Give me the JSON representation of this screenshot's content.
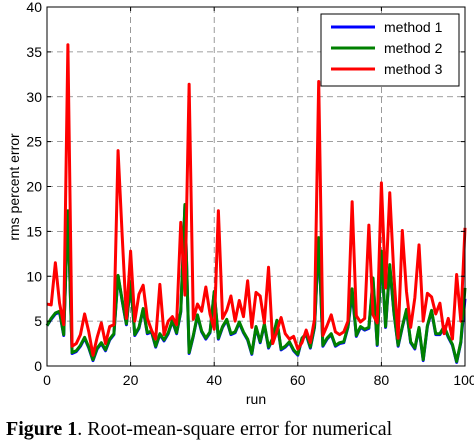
{
  "chart_data": {
    "type": "line",
    "xlabel": "run",
    "ylabel": "rms percent error",
    "xlim": [
      0,
      100
    ],
    "ylim": [
      0,
      40
    ],
    "xticks": [
      "0",
      "20",
      "40",
      "60",
      "80",
      "100"
    ],
    "yticks": [
      "0",
      "5",
      "10",
      "15",
      "20",
      "25",
      "30",
      "35",
      "40"
    ],
    "grid": true,
    "legend_position": "top-right",
    "x": [
      0,
      1,
      2,
      3,
      4,
      5,
      6,
      7,
      8,
      9,
      10,
      11,
      12,
      13,
      14,
      15,
      16,
      17,
      18,
      19,
      20,
      21,
      22,
      23,
      24,
      25,
      26,
      27,
      28,
      29,
      30,
      31,
      32,
      33,
      34,
      35,
      36,
      37,
      38,
      39,
      40,
      41,
      42,
      43,
      44,
      45,
      46,
      47,
      48,
      49,
      50,
      51,
      52,
      53,
      54,
      55,
      56,
      57,
      58,
      59,
      60,
      61,
      62,
      63,
      64,
      65,
      66,
      67,
      68,
      69,
      70,
      71,
      72,
      73,
      74,
      75,
      76,
      77,
      78,
      79,
      80,
      81,
      82,
      83,
      84,
      85,
      86,
      87,
      88,
      89,
      90,
      91,
      92,
      93,
      94,
      95,
      96,
      97,
      98,
      99,
      100
    ],
    "series": [
      {
        "name": "method 1",
        "color": "#0000ff",
        "values": [
          4.5,
          5.2,
          5.8,
          6.0,
          3.4,
          17.2,
          1.4,
          1.6,
          2.2,
          3.1,
          2.0,
          0.6,
          1.9,
          2.5,
          1.7,
          2.9,
          3.5,
          10.0,
          7.2,
          4.6,
          9.3,
          3.4,
          4.2,
          6.3,
          3.6,
          3.8,
          2.1,
          3.5,
          2.8,
          3.6,
          5.0,
          3.6,
          6.0,
          17.9,
          1.4,
          3.3,
          5.6,
          3.8,
          3.0,
          3.7,
          8.2,
          3.0,
          4.3,
          5.1,
          3.5,
          3.7,
          4.8,
          3.7,
          2.9,
          1.3,
          4.3,
          2.6,
          4.6,
          2.0,
          3.0,
          5.0,
          1.8,
          2.1,
          2.6,
          1.7,
          1.2,
          3.0,
          3.5,
          2.0,
          4.3,
          13.9,
          2.2,
          3.0,
          3.5,
          2.2,
          2.5,
          2.6,
          4.3,
          8.2,
          3.3,
          4.3,
          4.0,
          4.2,
          9.5,
          2.3,
          12.5,
          4.3,
          11.0,
          5.9,
          2.2,
          4.3,
          6.2,
          2.6,
          1.9,
          4.2,
          0.6,
          4.4,
          6.1,
          3.5,
          3.5,
          4.3,
          3.2,
          2.3,
          0.4,
          2.6,
          7.5
        ]
      },
      {
        "name": "method 2",
        "color": "#008000",
        "values": [
          4.5,
          5.3,
          5.9,
          6.1,
          3.5,
          17.3,
          1.5,
          1.7,
          2.3,
          3.2,
          2.1,
          0.7,
          2.0,
          2.6,
          1.8,
          3.0,
          3.6,
          10.1,
          7.3,
          4.7,
          9.4,
          3.5,
          4.3,
          6.4,
          3.7,
          3.9,
          2.2,
          3.6,
          2.9,
          3.7,
          5.1,
          3.7,
          6.1,
          18.0,
          1.5,
          3.4,
          5.7,
          3.9,
          3.1,
          3.8,
          8.3,
          3.1,
          4.4,
          5.2,
          3.6,
          3.8,
          4.9,
          3.8,
          3.0,
          1.4,
          4.4,
          2.7,
          4.7,
          2.1,
          3.1,
          5.1,
          1.9,
          2.2,
          2.7,
          1.8,
          1.3,
          3.1,
          3.6,
          2.1,
          4.4,
          14.3,
          2.3,
          3.1,
          3.6,
          2.3,
          2.6,
          2.7,
          4.4,
          8.6,
          3.4,
          4.4,
          4.1,
          4.3,
          9.8,
          2.4,
          12.8,
          4.4,
          11.3,
          6.0,
          2.3,
          4.4,
          6.3,
          2.7,
          2.0,
          4.3,
          0.7,
          4.5,
          6.2,
          3.6,
          3.6,
          4.4,
          3.3,
          2.4,
          0.5,
          2.7,
          8.7
        ]
      },
      {
        "name": "method 3",
        "color": "#ff0000",
        "values": [
          6.9,
          6.8,
          11.5,
          7.0,
          4.6,
          35.8,
          2.2,
          2.5,
          3.5,
          5.8,
          3.8,
          1.2,
          3.2,
          4.8,
          2.5,
          4.4,
          4.6,
          24.0,
          14.4,
          5.3,
          12.8,
          5.0,
          8.0,
          9.0,
          5.3,
          4.0,
          3.0,
          9.1,
          3.5,
          5.0,
          5.5,
          4.6,
          16.0,
          7.9,
          31.4,
          5.2,
          6.9,
          6.1,
          8.8,
          5.8,
          4.1,
          17.3,
          5.3,
          6.2,
          7.8,
          5.0,
          7.3,
          5.5,
          9.5,
          4.3,
          8.2,
          7.8,
          4.8,
          11.0,
          2.5,
          3.9,
          5.4,
          3.6,
          3.0,
          3.3,
          1.9,
          2.6,
          4.0,
          2.6,
          5.2,
          31.7,
          3.4,
          4.5,
          5.7,
          3.8,
          3.5,
          3.8,
          5.0,
          18.3,
          5.6,
          4.9,
          5.3,
          15.7,
          5.7,
          4.8,
          20.4,
          8.7,
          19.3,
          10.0,
          3.1,
          15.1,
          8.3,
          4.3,
          7.6,
          13.5,
          5.0,
          8.1,
          7.7,
          5.8,
          7.0,
          3.6,
          5.3,
          3.0,
          10.2,
          5.0,
          15.4
        ]
      }
    ]
  },
  "caption": {
    "label": "Figure 1",
    "text": "Root-mean-square error for numerical"
  }
}
